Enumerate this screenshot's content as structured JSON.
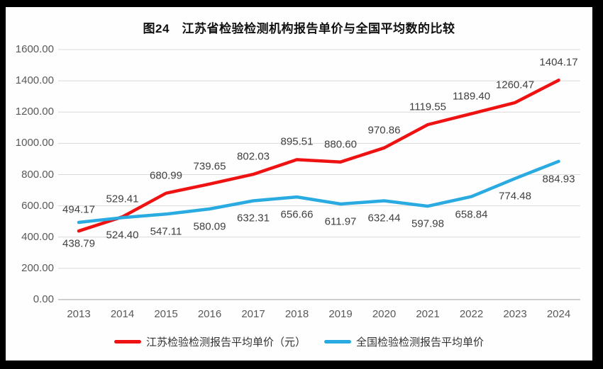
{
  "frame": {
    "background": "#000000",
    "panel_background": "#fefefe"
  },
  "chart_data": {
    "type": "line",
    "title": "图24　江苏省检验检测机构报告单价与全国平均数的比较",
    "categories": [
      "2013",
      "2014",
      "2015",
      "2016",
      "2017",
      "2018",
      "2019",
      "2020",
      "2021",
      "2022",
      "2023",
      "2024"
    ],
    "series": [
      {
        "name": "江苏检验检测报告平均单价（元）",
        "color": "#ee1212",
        "values": [
          438.79,
          529.41,
          680.99,
          739.65,
          802.03,
          895.51,
          880.6,
          970.86,
          1119.55,
          1189.4,
          1260.47,
          1404.17
        ],
        "label_side_default": "above",
        "label_side_overrides": {
          "0": "below"
        }
      },
      {
        "name": "全国检验检测报告平均单价",
        "color": "#29abe2",
        "values": [
          494.17,
          524.4,
          547.11,
          580.09,
          632.31,
          656.66,
          611.97,
          632.44,
          597.98,
          658.84,
          774.48,
          884.93
        ],
        "label_side_default": "below",
        "label_side_overrides": {
          "0": "above"
        }
      }
    ],
    "xlabel": "",
    "ylabel": "",
    "ylim": [
      0,
      1600
    ],
    "ytick_step": 200,
    "yticks": [
      "1600.00",
      "1400.00",
      "1200.00",
      "1000.00",
      "800.00",
      "600.00",
      "400.00",
      "200.00",
      "0.00"
    ],
    "grid": true,
    "legend_position": "bottom",
    "colors": {
      "gridline": "#d9d9d9",
      "axis_line": "#bfbfbf",
      "axis_text": "#595959",
      "data_label_text": "#404040"
    }
  }
}
